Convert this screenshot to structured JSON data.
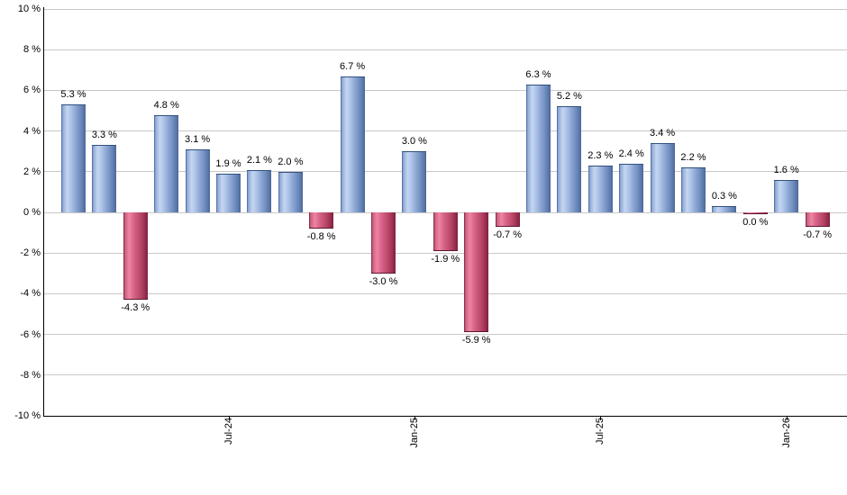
{
  "chart_data": {
    "type": "bar",
    "title": "",
    "y_axis": {
      "min": -10,
      "max": 10,
      "step": 2,
      "tick_labels": [
        "10 %",
        "8 %",
        "6 %",
        "4 %",
        "2 %",
        "0 %",
        "-2 %",
        "-4 %",
        "-6 %",
        "-8 %",
        "-10 %"
      ]
    },
    "x_axis": {
      "tick_labels": [
        {
          "label": "Jul-24",
          "bar_index": 5
        },
        {
          "label": "Jan-25",
          "bar_index": 11
        },
        {
          "label": "Jul-25",
          "bar_index": 17
        },
        {
          "label": "Jan-26",
          "bar_index": 23
        }
      ]
    },
    "bars": [
      {
        "value": 5.3,
        "label": "5.3 %",
        "color": "blue"
      },
      {
        "value": 3.3,
        "label": "3.3 %",
        "color": "blue"
      },
      {
        "value": -4.3,
        "label": "-4.3 %",
        "color": "red"
      },
      {
        "value": 4.8,
        "label": "4.8 %",
        "color": "blue"
      },
      {
        "value": 3.1,
        "label": "3.1 %",
        "color": "blue"
      },
      {
        "value": 1.9,
        "label": "1.9 %",
        "color": "blue"
      },
      {
        "value": 2.1,
        "label": "2.1 %",
        "color": "blue"
      },
      {
        "value": 2.0,
        "label": "2.0 %",
        "color": "blue"
      },
      {
        "value": -0.8,
        "label": "-0.8 %",
        "color": "red"
      },
      {
        "value": 6.7,
        "label": "6.7 %",
        "color": "blue"
      },
      {
        "value": -3.0,
        "label": "-3.0 %",
        "color": "red"
      },
      {
        "value": 3.0,
        "label": "3.0 %",
        "color": "blue"
      },
      {
        "value": -1.9,
        "label": "-1.9 %",
        "color": "red"
      },
      {
        "value": -5.9,
        "label": "-5.9 %",
        "color": "red"
      },
      {
        "value": -0.7,
        "label": "-0.7 %",
        "color": "red"
      },
      {
        "value": 6.3,
        "label": "6.3 %",
        "color": "blue"
      },
      {
        "value": 5.2,
        "label": "5.2 %",
        "color": "blue"
      },
      {
        "value": 2.3,
        "label": "2.3 %",
        "color": "blue"
      },
      {
        "value": 2.4,
        "label": "2.4 %",
        "color": "blue"
      },
      {
        "value": 3.4,
        "label": "3.4 %",
        "color": "blue"
      },
      {
        "value": 2.2,
        "label": "2.2 %",
        "color": "blue"
      },
      {
        "value": 0.3,
        "label": "0.3 %",
        "color": "blue"
      },
      {
        "value": 0.0,
        "label": "0.0 %",
        "color": "red"
      },
      {
        "value": 1.6,
        "label": "1.6 %",
        "color": "blue"
      },
      {
        "value": -0.7,
        "label": "-0.7 %",
        "color": "red"
      }
    ],
    "colors": {
      "positive_base": "#8aa6d8",
      "negative_base": "#c04a6b",
      "gridline": "#c9c9c9",
      "axis": "#000000"
    },
    "layout_hints": {
      "grid": "horizontal-only",
      "legend": "none",
      "x_label_rotation": -90,
      "value_labels": "outside-end"
    }
  }
}
